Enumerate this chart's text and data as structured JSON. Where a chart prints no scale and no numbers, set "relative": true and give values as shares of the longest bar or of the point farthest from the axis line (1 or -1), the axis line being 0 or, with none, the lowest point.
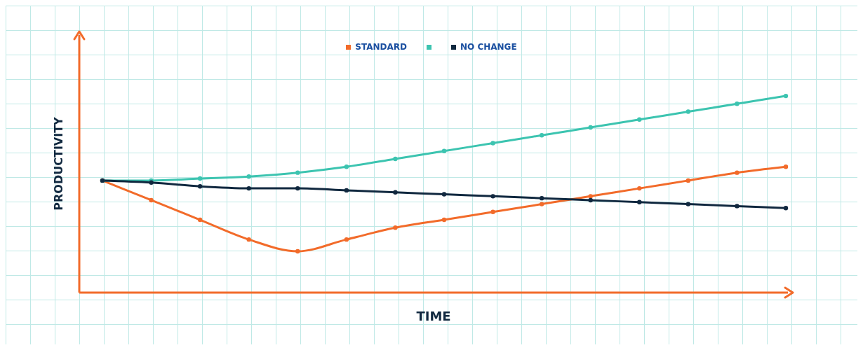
{
  "chart_data": {
    "type": "line",
    "xlabel": "TIME",
    "ylabel": "PRODUCTIVITY",
    "relative": true,
    "legend": "top",
    "marker": "circle",
    "line_style": "solid",
    "grid": false,
    "categories": [
      null,
      null,
      null,
      null,
      null,
      null,
      null,
      null,
      null,
      null,
      null,
      null,
      null,
      null,
      null
    ],
    "series": [
      {
        "name": "STANDARD",
        "color": "#f26b2a",
        "values": [
          0.57,
          0.47,
          0.37,
          0.27,
          0.21,
          0.27,
          0.33,
          0.37,
          0.41,
          0.45,
          0.49,
          0.53,
          0.57,
          0.61,
          0.64
        ]
      },
      {
        "color": "#3cc4b0",
        "values": [
          0.57,
          0.57,
          0.58,
          0.59,
          0.61,
          0.64,
          0.68,
          0.72,
          0.76,
          0.8,
          0.84,
          0.88,
          0.92,
          0.96,
          1
        ]
      },
      {
        "name": "NO CHANGE",
        "color": "#10283f",
        "values": [
          0.57,
          0.56,
          0.54,
          0.53,
          0.53,
          0.52,
          0.51,
          0.5,
          0.49,
          0.48,
          0.47,
          0.46,
          0.45,
          0.44,
          0.43
        ]
      }
    ]
  }
}
